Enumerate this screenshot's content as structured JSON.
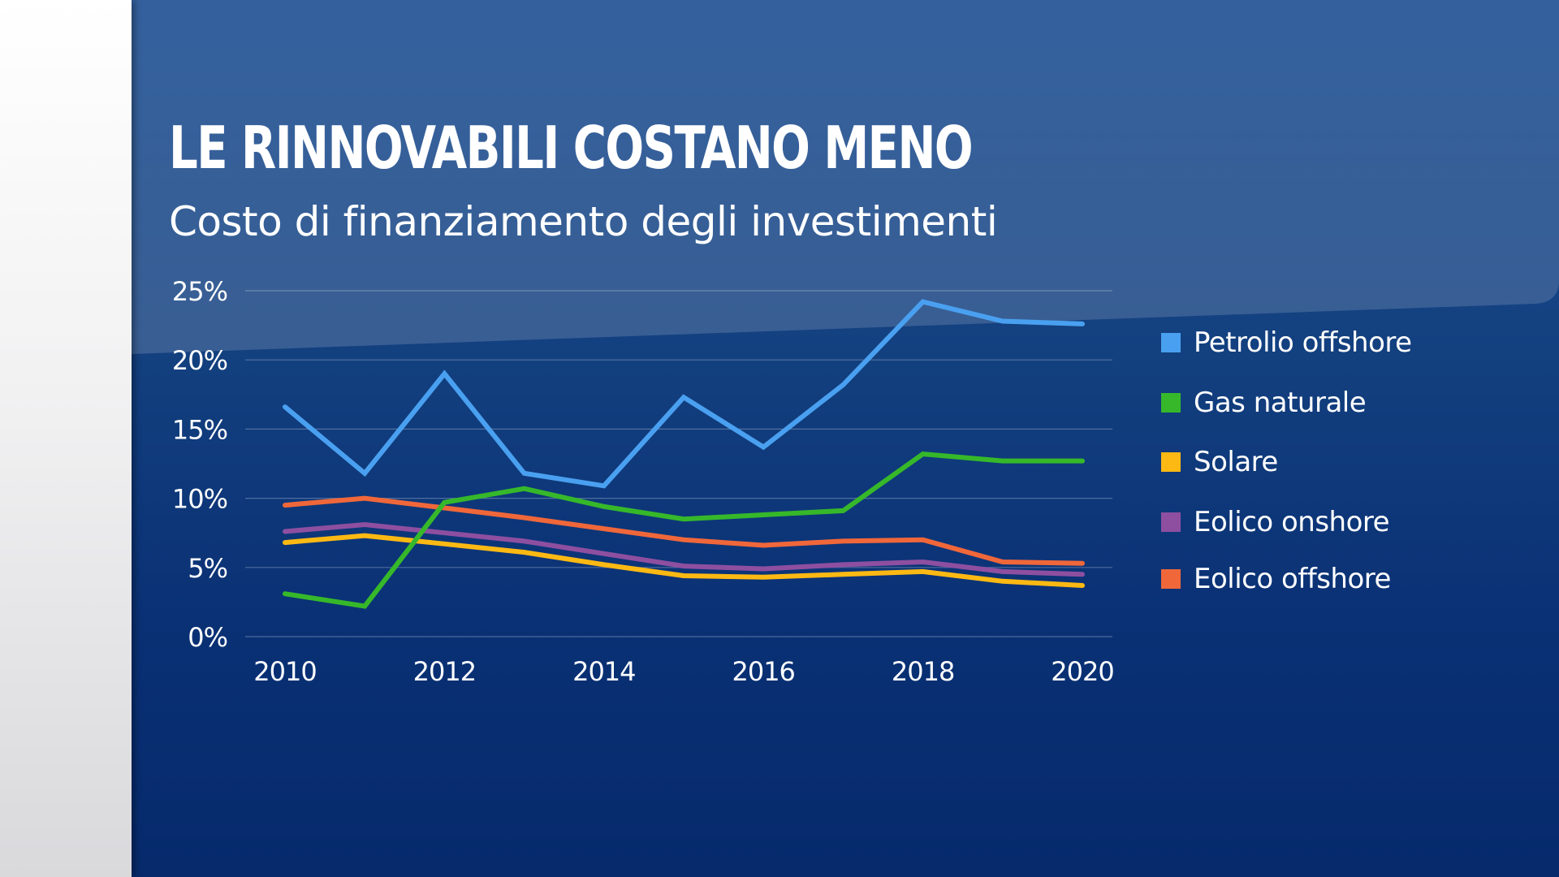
{
  "title": "LE RINNOVABILI COSTANO MENO",
  "subtitle": "Costo di finanziamento degli investimenti",
  "chart_data": {
    "type": "line",
    "title": "LE RINNOVABILI COSTANO MENO",
    "subtitle": "Costo di finanziamento degli investimenti",
    "xlabel": "",
    "ylabel": "",
    "x": [
      2010,
      2011,
      2012,
      2013,
      2014,
      2015,
      2016,
      2017,
      2018,
      2019,
      2020
    ],
    "xticks": [
      2010,
      2012,
      2014,
      2016,
      2018,
      2020
    ],
    "xtick_labels": [
      "2010",
      "2012",
      "2014",
      "2016",
      "2018",
      "2020"
    ],
    "xlim": [
      2010,
      2020
    ],
    "ylim": [
      0,
      25
    ],
    "yticks": [
      0,
      5,
      10,
      15,
      20,
      25
    ],
    "ytick_labels": [
      "0%",
      "5%",
      "10%",
      "15%",
      "20%",
      "25%"
    ],
    "grid": true,
    "legend_position": "right",
    "series": [
      {
        "name": "Petrolio offshore",
        "color": "#4aa0f0",
        "values": [
          16.6,
          11.8,
          19.0,
          11.8,
          10.9,
          17.3,
          13.7,
          18.2,
          24.2,
          22.8,
          22.6
        ]
      },
      {
        "name": "Gas naturale",
        "color": "#36b82a",
        "values": [
          3.1,
          2.2,
          9.7,
          10.7,
          9.4,
          8.5,
          8.8,
          9.1,
          13.2,
          12.7,
          12.7
        ]
      },
      {
        "name": "Solare",
        "color": "#fdb913",
        "values": [
          6.8,
          7.3,
          6.7,
          6.1,
          5.2,
          4.4,
          4.3,
          4.5,
          4.7,
          4.0,
          3.7
        ]
      },
      {
        "name": "Eolico onshore",
        "color": "#8e4fa0",
        "values": [
          7.6,
          8.1,
          7.5,
          6.9,
          6.0,
          5.1,
          4.9,
          5.2,
          5.4,
          4.7,
          4.5
        ]
      },
      {
        "name": "Eolico offshore",
        "color": "#f0673a",
        "values": [
          9.5,
          10.0,
          9.3,
          8.6,
          7.8,
          7.0,
          6.6,
          6.9,
          7.0,
          5.4,
          5.3
        ]
      }
    ]
  }
}
